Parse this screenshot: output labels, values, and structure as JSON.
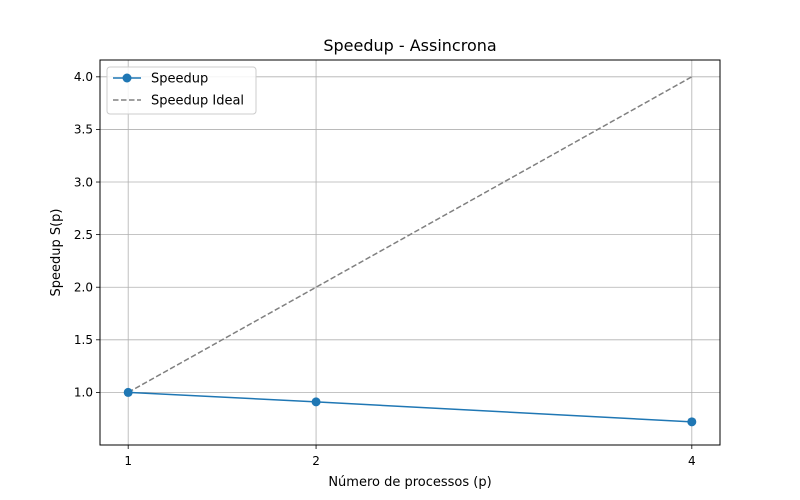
{
  "chart_data": {
    "type": "line",
    "title": "Speedup - Assincrona",
    "xlabel": "Número de processos (p)",
    "ylabel": "Speedup S(p)",
    "x": [
      1,
      2,
      4
    ],
    "xticks": [
      "1",
      "2",
      "4"
    ],
    "xlim": [
      0.85,
      4.15
    ],
    "ylim": [
      0.5,
      4.16
    ],
    "yticks": [
      1.0,
      1.5,
      2.0,
      2.5,
      3.0,
      3.5,
      4.0
    ],
    "ytick_labels": [
      "1.0",
      "1.5",
      "2.0",
      "2.5",
      "3.0",
      "3.5",
      "4.0"
    ],
    "grid": true,
    "legend_position": "upper-left",
    "series": [
      {
        "name": "Speedup",
        "values": [
          1.0,
          0.91,
          0.72
        ],
        "color": "#1f77b4",
        "style": "solid",
        "marker": "circle"
      },
      {
        "name": "Speedup Ideal",
        "values": [
          1.0,
          2.0,
          4.0
        ],
        "color": "#808080",
        "style": "dashed",
        "marker": "none"
      }
    ]
  }
}
